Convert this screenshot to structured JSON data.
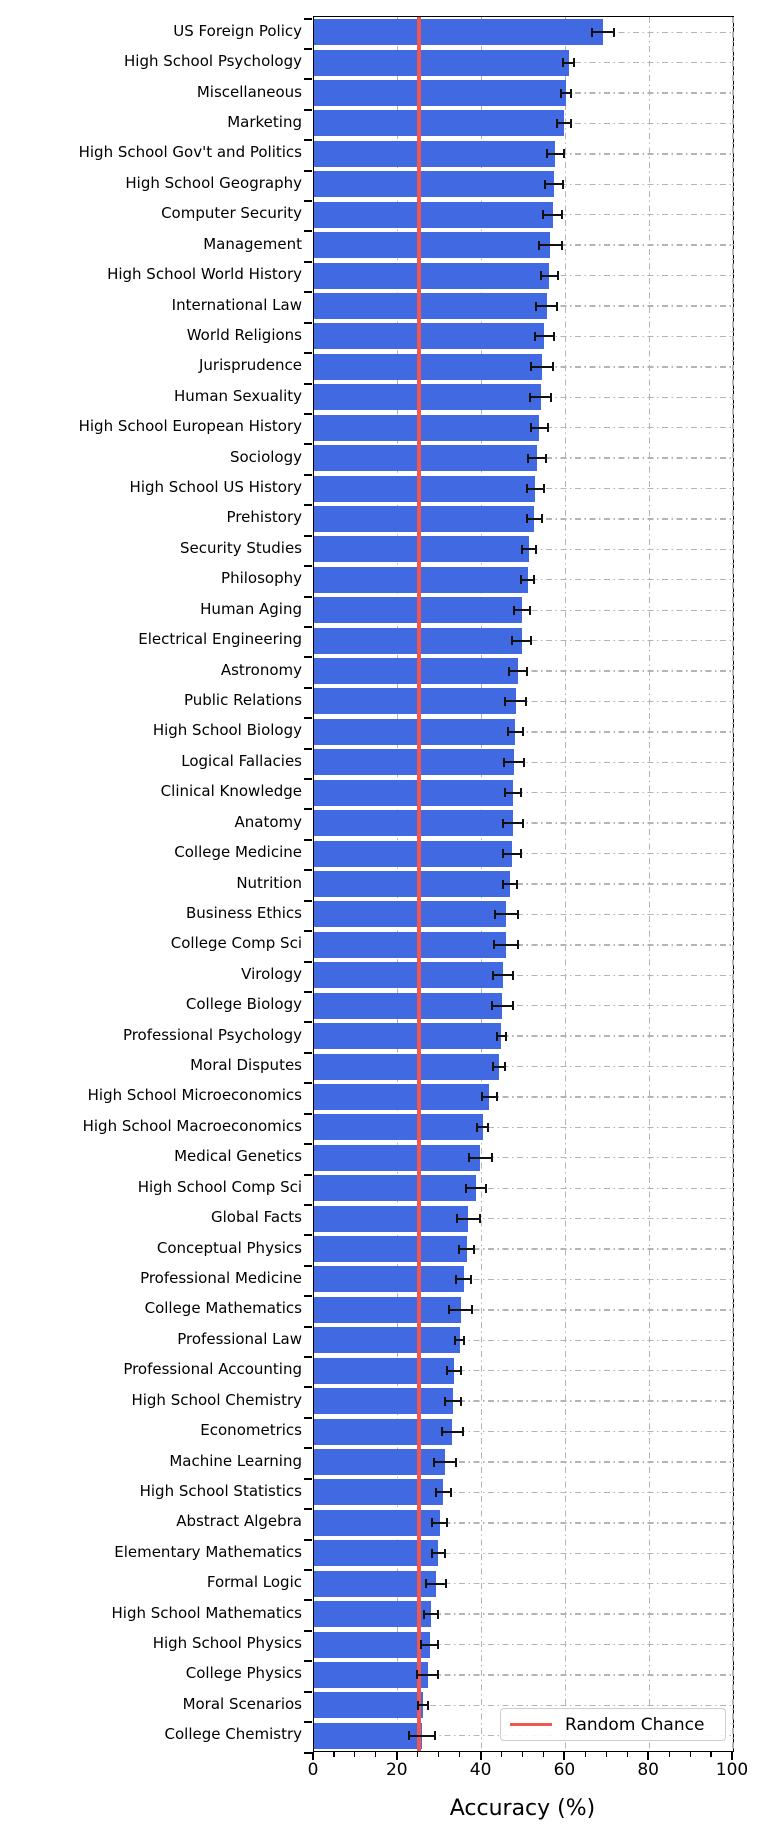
{
  "chart_data": {
    "type": "bar",
    "orientation": "horizontal",
    "xlabel": "Accuracy (%)",
    "xlim": [
      0,
      100
    ],
    "xticks": [
      0,
      20,
      40,
      60,
      80,
      100
    ],
    "minor_tick_step": 5,
    "grid": "dash-dot on both axes",
    "legend": {
      "label": "Random Chance",
      "position": "lower right"
    },
    "random_chance_value": 25,
    "bar_color": "#4169E1",
    "random_chance_color": "#f2574f",
    "grid_color": "#b4b4b4",
    "error_bar_color": "#111111",
    "categories": [
      "US Foreign Policy",
      "High School Psychology",
      "Miscellaneous",
      "Marketing",
      "High School Gov't and Politics",
      "High School Geography",
      "Computer Security",
      "Management",
      "High School World History",
      "International Law",
      "World Religions",
      "Jurisprudence",
      "Human Sexuality",
      "High School European History",
      "Sociology",
      "High School US History",
      "Prehistory",
      "Security Studies",
      "Philosophy",
      "Human Aging",
      "Electrical Engineering",
      "Astronomy",
      "Public Relations",
      "High School Biology",
      "Logical Fallacies",
      "Clinical Knowledge",
      "Anatomy",
      "College Medicine",
      "Nutrition",
      "Business Ethics",
      "College Comp Sci",
      "Virology",
      "College Biology",
      "Professional Psychology",
      "Moral Disputes",
      "High School Microeconomics",
      "High School Macroeconomics",
      "Medical Genetics",
      "High School Comp Sci",
      "Global Facts",
      "Conceptual Physics",
      "Professional Medicine",
      "College Mathematics",
      "Professional Law",
      "Professional Accounting",
      "High School Chemistry",
      "Econometrics",
      "Machine Learning",
      "High School Statistics",
      "Abstract Algebra",
      "Elementary Mathematics",
      "Formal Logic",
      "High School Mathematics",
      "High School Physics",
      "College Physics",
      "Moral Scenarios",
      "College Chemistry"
    ],
    "values": [
      69.0,
      60.8,
      60.2,
      59.7,
      57.6,
      57.3,
      57.0,
      56.4,
      56.2,
      55.5,
      55.0,
      54.5,
      54.1,
      53.8,
      53.2,
      52.8,
      52.6,
      51.4,
      51.0,
      49.7,
      49.6,
      48.7,
      48.1,
      48.0,
      47.7,
      47.5,
      47.4,
      47.3,
      46.8,
      45.9,
      45.8,
      45.1,
      44.9,
      44.7,
      44.2,
      41.8,
      40.3,
      39.7,
      38.7,
      36.8,
      36.5,
      35.7,
      35.0,
      34.8,
      33.4,
      33.2,
      33.0,
      31.3,
      30.9,
      30.0,
      29.7,
      29.1,
      27.9,
      27.6,
      27.1,
      26.0,
      25.8
    ],
    "errors": [
      2.7,
      1.3,
      1.2,
      1.7,
      2.0,
      2.1,
      2.3,
      2.8,
      2.1,
      2.4,
      2.2,
      2.6,
      2.5,
      2.0,
      2.1,
      2.0,
      1.7,
      1.7,
      1.6,
      1.9,
      2.3,
      2.2,
      2.6,
      1.8,
      2.3,
      1.8,
      2.4,
      2.2,
      1.7,
      2.8,
      2.8,
      2.3,
      2.5,
      1.1,
      1.4,
      1.8,
      1.3,
      2.7,
      2.4,
      2.7,
      1.8,
      1.7,
      2.7,
      1.1,
      1.7,
      2.0,
      2.5,
      2.7,
      1.9,
      1.8,
      1.5,
      2.3,
      1.7,
      2.1,
      2.4,
      1.1,
      3.1
    ]
  }
}
